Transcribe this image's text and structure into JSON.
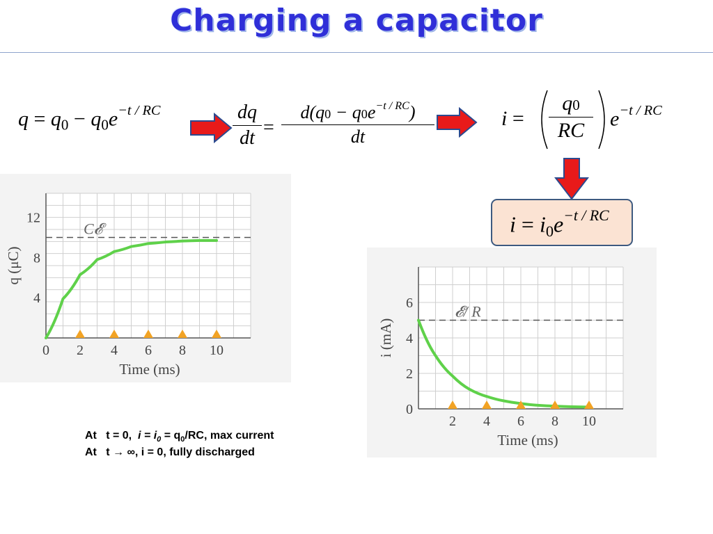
{
  "title": "Charging a capacitor",
  "equations": {
    "eq1": {
      "lhs": "q",
      "eq": "=",
      "q0a": "q",
      "sub0a": "0",
      "minus": "−",
      "q0b": "q",
      "sub0b": "0",
      "e": "e",
      "exp": "−t / RC"
    },
    "eq2": {
      "num_left": "dq",
      "den_left": "dt",
      "eq": "=",
      "num_right_d": "d",
      "num_right_open": "(",
      "q0a": "q",
      "sub0a": "0",
      "minus": "−",
      "q0b": "q",
      "sub0b": "0",
      "e": "e",
      "exp": "−t / RC",
      "num_right_close": ")",
      "den_right": "dt"
    },
    "eq3": {
      "lhs": "i",
      "eq": "=",
      "num": "q",
      "num_sub": "0",
      "den": "RC",
      "e": "e",
      "exp": "−t / RC"
    },
    "eq4": {
      "lhs": "i",
      "eq": "=",
      "i0": "i",
      "sub0": "0",
      "e": "e",
      "exp": "−t / RC"
    }
  },
  "colors": {
    "title": "#2f2fd8",
    "arrow_fill": "#e81a1a",
    "arrow_stroke": "#2b4a8f",
    "curve": "#5fd14a",
    "marker": "#f2a324",
    "box_fill": "#fbe3d3",
    "box_border": "#3d5a80"
  },
  "chart_data": [
    {
      "type": "line",
      "xlabel": "Time (ms)",
      "ylabel": "q (μC)",
      "xlim": [
        0,
        12
      ],
      "ylim": [
        0,
        14.4
      ],
      "xticks": [
        0,
        2,
        4,
        6,
        8,
        10
      ],
      "yticks": [
        4,
        8,
        12
      ],
      "grid": true,
      "asymptote": {
        "y": 10,
        "label": "C𝓔"
      },
      "series": [
        {
          "x": [
            0,
            1,
            2,
            3,
            4,
            5,
            6,
            7,
            8,
            9,
            10
          ],
          "y": [
            0,
            3.9,
            6.3,
            7.8,
            8.6,
            9.1,
            9.4,
            9.55,
            9.65,
            9.7,
            9.7
          ]
        }
      ],
      "markers_x": [
        2,
        4,
        6,
        8,
        10
      ]
    },
    {
      "type": "line",
      "xlabel": "Time (ms)",
      "ylabel": "i (mA)",
      "xlim": [
        0,
        12
      ],
      "ylim": [
        0,
        8
      ],
      "xticks": [
        2,
        4,
        6,
        8,
        10
      ],
      "yticks": [
        0,
        2,
        4,
        6
      ],
      "grid": true,
      "asymptote": {
        "y": 5,
        "label": "𝓔/ R"
      },
      "series": [
        {
          "x": [
            0,
            1,
            2,
            3,
            4,
            5,
            6,
            7,
            8,
            9,
            10
          ],
          "y": [
            5,
            3.0,
            1.85,
            1.1,
            0.7,
            0.45,
            0.3,
            0.2,
            0.15,
            0.12,
            0.1
          ]
        }
      ],
      "markers_x": [
        2,
        4,
        6,
        8,
        10
      ]
    }
  ],
  "notes": {
    "line1": {
      "prefix": "At   t = 0,  ",
      "i": "i",
      "eq": " = ",
      "i0": "i",
      "i0_sub": "0",
      "rest_a": " = q",
      "q_sub": "0",
      "rest_b": "/RC, max current"
    },
    "line2": {
      "prefix": "At   t ",
      "arrow": "→",
      "rest": " ∞, i = 0, fully discharged"
    }
  }
}
